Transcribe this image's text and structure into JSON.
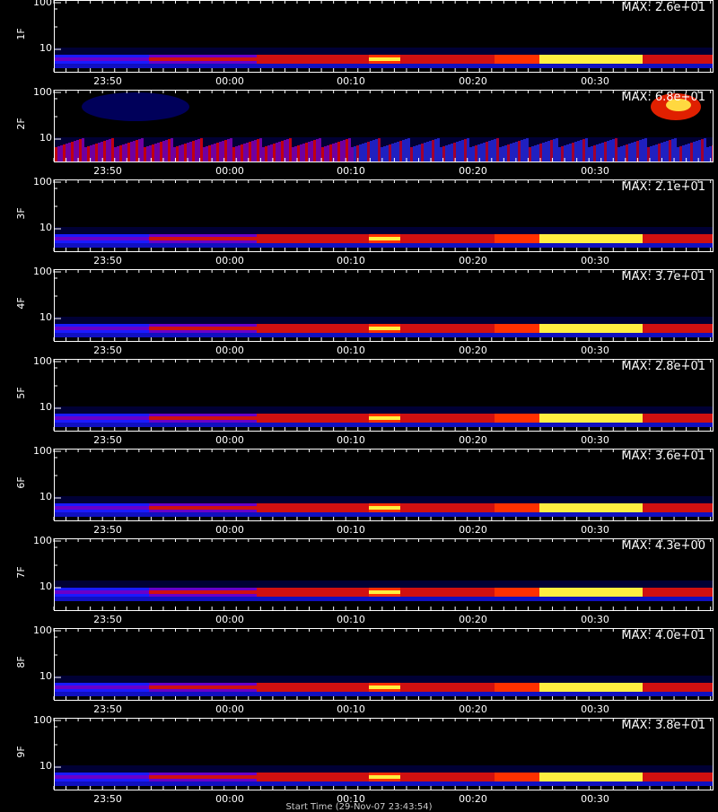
{
  "chart_data": {
    "type": "heatmap",
    "x_ticks": [
      "23:50",
      "00:00",
      "00:10",
      "00:20",
      "00:30"
    ],
    "y_ticks": [
      "100",
      "10"
    ],
    "y_scale": "log",
    "colormap": "black-blue-red-yellow-white",
    "panels": [
      {
        "ylabel": "1F",
        "max_label": "MAX: 2.6e+01",
        "max": 26
      },
      {
        "ylabel": "2F",
        "max_label": "MAX: 6.8e+01",
        "max": 68
      },
      {
        "ylabel": "3F",
        "max_label": "MAX: 2.1e+01",
        "max": 21
      },
      {
        "ylabel": "4F",
        "max_label": "MAX: 3.7e+01",
        "max": 37
      },
      {
        "ylabel": "5F",
        "max_label": "MAX: 2.8e+01",
        "max": 28
      },
      {
        "ylabel": "6F",
        "max_label": "MAX: 3.6e+01",
        "max": 36
      },
      {
        "ylabel": "7F",
        "max_label": "MAX: 4.3e+00",
        "max": 4.3
      },
      {
        "ylabel": "8F",
        "max_label": "MAX: 4.0e+01",
        "max": 40
      },
      {
        "ylabel": "9F",
        "max_label": "MAX: 3.8e+01",
        "max": 38
      }
    ],
    "x_title": "Start Time (29-Nov-07 23:43:54)"
  }
}
